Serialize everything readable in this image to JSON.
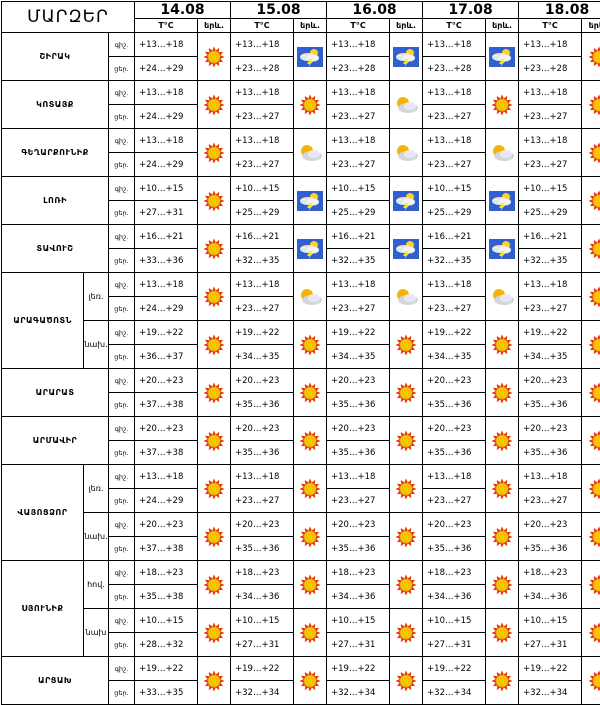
{
  "header": {
    "title": "ՄԱՐԶԵՐ",
    "dates": [
      "14.08",
      "15.08",
      "16.08",
      "17.08",
      "18.08"
    ],
    "temp_label": "T°C",
    "phenomenon_label": "երև."
  },
  "row_labels": {
    "night": "գիշ.",
    "day": "ցեր."
  },
  "regions": [
    {
      "name": "ՇԻՐԱԿ",
      "sub": "",
      "days": [
        {
          "night": "+13…+18",
          "day": "+24…+29",
          "icon": "sun-icon"
        },
        {
          "night": "+13…+18",
          "day": "+23…+28",
          "icon": "thunderstorm-icon"
        },
        {
          "night": "+13…+18",
          "day": "+23…+28",
          "icon": "thunderstorm-icon"
        },
        {
          "night": "+13…+18",
          "day": "+23…+28",
          "icon": "thunderstorm-icon"
        },
        {
          "night": "+13…+18",
          "day": "+23…+28",
          "icon": "sun-icon"
        }
      ]
    },
    {
      "name": "ԿՈՏԱՅՔ",
      "sub": "",
      "days": [
        {
          "night": "+13…+18",
          "day": "+24…+29",
          "icon": "sun-icon"
        },
        {
          "night": "+13…+18",
          "day": "+23…+27",
          "icon": "sun-icon"
        },
        {
          "night": "+13…+18",
          "day": "+23…+27",
          "icon": "partly-cloudy-icon"
        },
        {
          "night": "+13…+18",
          "day": "+23…+27",
          "icon": "sun-icon"
        },
        {
          "night": "+13…+18",
          "day": "+23…+27",
          "icon": "sun-icon"
        }
      ]
    },
    {
      "name": "ԳԵՂԱՐՔՈՒՆԻՔ",
      "sub": "",
      "days": [
        {
          "night": "+13…+18",
          "day": "+24…+29",
          "icon": "sun-icon"
        },
        {
          "night": "+13…+18",
          "day": "+23…+27",
          "icon": "partly-cloudy-icon"
        },
        {
          "night": "+13…+18",
          "day": "+23…+27",
          "icon": "partly-cloudy-icon"
        },
        {
          "night": "+13…+18",
          "day": "+23…+27",
          "icon": "partly-cloudy-icon"
        },
        {
          "night": "+13…+18",
          "day": "+23…+27",
          "icon": "sun-icon"
        }
      ]
    },
    {
      "name": "ԼՈՌԻ",
      "sub": "",
      "days": [
        {
          "night": "+10…+15",
          "day": "+27…+31",
          "icon": "sun-icon"
        },
        {
          "night": "+10…+15",
          "day": "+25…+29",
          "icon": "thunderstorm-icon"
        },
        {
          "night": "+10…+15",
          "day": "+25…+29",
          "icon": "thunderstorm-icon"
        },
        {
          "night": "+10…+15",
          "day": "+25…+29",
          "icon": "thunderstorm-icon"
        },
        {
          "night": "+10…+15",
          "day": "+25…+29",
          "icon": "sun-icon"
        }
      ]
    },
    {
      "name": "ՏԱՎՈՒՇ",
      "sub": "",
      "days": [
        {
          "night": "+16…+21",
          "day": "+33…+36",
          "icon": "sun-icon"
        },
        {
          "night": "+16…+21",
          "day": "+32…+35",
          "icon": "thunderstorm-icon"
        },
        {
          "night": "+16…+21",
          "day": "+32…+35",
          "icon": "thunderstorm-icon"
        },
        {
          "night": "+16…+21",
          "day": "+32…+35",
          "icon": "thunderstorm-icon"
        },
        {
          "night": "+16…+21",
          "day": "+32…+35",
          "icon": "sun-icon"
        }
      ]
    },
    {
      "name": "ԱՐԱԳԱԾՈՏՆ",
      "sub": "լեռ.",
      "days": [
        {
          "night": "+13…+18",
          "day": "+24…+29",
          "icon": "sun-icon"
        },
        {
          "night": "+13…+18",
          "day": "+23…+27",
          "icon": "partly-cloudy-icon"
        },
        {
          "night": "+13…+18",
          "day": "+23…+27",
          "icon": "partly-cloudy-icon"
        },
        {
          "night": "+13…+18",
          "day": "+23…+27",
          "icon": "partly-cloudy-icon"
        },
        {
          "night": "+13…+18",
          "day": "+23…+27",
          "icon": "sun-icon"
        }
      ]
    },
    {
      "name": "",
      "sub": "նախ.",
      "days": [
        {
          "night": "+19…+22",
          "day": "+36…+37",
          "icon": "sun-icon"
        },
        {
          "night": "+19…+22",
          "day": "+34…+35",
          "icon": "sun-icon"
        },
        {
          "night": "+19…+22",
          "day": "+34…+35",
          "icon": "sun-icon"
        },
        {
          "night": "+19…+22",
          "day": "+34…+35",
          "icon": "sun-icon"
        },
        {
          "night": "+19…+22",
          "day": "+34…+35",
          "icon": "sun-icon"
        }
      ]
    },
    {
      "name": "ԱՐԱՐԱՏ",
      "sub": "",
      "days": [
        {
          "night": "+20…+23",
          "day": "+37…+38",
          "icon": "sun-icon"
        },
        {
          "night": "+20…+23",
          "day": "+35…+36",
          "icon": "sun-icon"
        },
        {
          "night": "+20…+23",
          "day": "+35…+36",
          "icon": "sun-icon"
        },
        {
          "night": "+20…+23",
          "day": "+35…+36",
          "icon": "sun-icon"
        },
        {
          "night": "+20…+23",
          "day": "+35…+36",
          "icon": "sun-icon"
        }
      ]
    },
    {
      "name": "ԱՐՄԱՎԻՐ",
      "sub": "",
      "days": [
        {
          "night": "+20…+23",
          "day": "+37…+38",
          "icon": "sun-icon"
        },
        {
          "night": "+20…+23",
          "day": "+35…+36",
          "icon": "sun-icon"
        },
        {
          "night": "+20…+23",
          "day": "+35…+36",
          "icon": "sun-icon"
        },
        {
          "night": "+20…+23",
          "day": "+35…+36",
          "icon": "sun-icon"
        },
        {
          "night": "+20…+23",
          "day": "+35…+36",
          "icon": "sun-icon"
        }
      ]
    },
    {
      "name": "ՎԱՅՈՑՁՈՐ",
      "sub": "լեռ.",
      "days": [
        {
          "night": "+13…+18",
          "day": "+24…+29",
          "icon": "sun-icon"
        },
        {
          "night": "+13…+18",
          "day": "+23…+27",
          "icon": "sun-icon"
        },
        {
          "night": "+13…+18",
          "day": "+23…+27",
          "icon": "sun-icon"
        },
        {
          "night": "+13…+18",
          "day": "+23…+27",
          "icon": "sun-icon"
        },
        {
          "night": "+13…+18",
          "day": "+23…+27",
          "icon": "sun-icon"
        }
      ]
    },
    {
      "name": "",
      "sub": "նախ.",
      "days": [
        {
          "night": "+20…+23",
          "day": "+37…+38",
          "icon": "sun-icon"
        },
        {
          "night": "+20…+23",
          "day": "+35…+36",
          "icon": "sun-icon"
        },
        {
          "night": "+20…+23",
          "day": "+35…+36",
          "icon": "sun-icon"
        },
        {
          "night": "+20…+23",
          "day": "+35…+36",
          "icon": "sun-icon"
        },
        {
          "night": "+20…+23",
          "day": "+35…+36",
          "icon": "sun-icon"
        }
      ]
    },
    {
      "name": "ՍՅՈՒՆԻՔ",
      "sub": "հով.",
      "days": [
        {
          "night": "+18…+23",
          "day": "+35…+38",
          "icon": "sun-icon"
        },
        {
          "night": "+18…+23",
          "day": "+34…+36",
          "icon": "sun-icon"
        },
        {
          "night": "+18…+23",
          "day": "+34…+36",
          "icon": "sun-icon"
        },
        {
          "night": "+18…+23",
          "day": "+34…+36",
          "icon": "sun-icon"
        },
        {
          "night": "+18…+23",
          "day": "+34…+36",
          "icon": "sun-icon"
        }
      ]
    },
    {
      "name": "",
      "sub": "նախ",
      "days": [
        {
          "night": "+10…+15",
          "day": "+28…+32",
          "icon": "sun-icon"
        },
        {
          "night": "+10…+15",
          "day": "+27…+31",
          "icon": "sun-icon"
        },
        {
          "night": "+10…+15",
          "day": "+27…+31",
          "icon": "sun-icon"
        },
        {
          "night": "+10…+15",
          "day": "+27…+31",
          "icon": "sun-icon"
        },
        {
          "night": "+10…+15",
          "day": "+27…+31",
          "icon": "sun-icon"
        }
      ]
    },
    {
      "name": "ԱՐՑԱԽ",
      "sub": "",
      "days": [
        {
          "night": "+19…+22",
          "day": "+33…+35",
          "icon": "sun-icon"
        },
        {
          "night": "+19…+22",
          "day": "+32…+34",
          "icon": "sun-icon"
        },
        {
          "night": "+19…+22",
          "day": "+32…+34",
          "icon": "sun-icon"
        },
        {
          "night": "+19…+22",
          "day": "+32…+34",
          "icon": "sun-icon"
        },
        {
          "night": "+19…+22",
          "day": "+32…+34",
          "icon": "sun-icon"
        }
      ]
    }
  ]
}
